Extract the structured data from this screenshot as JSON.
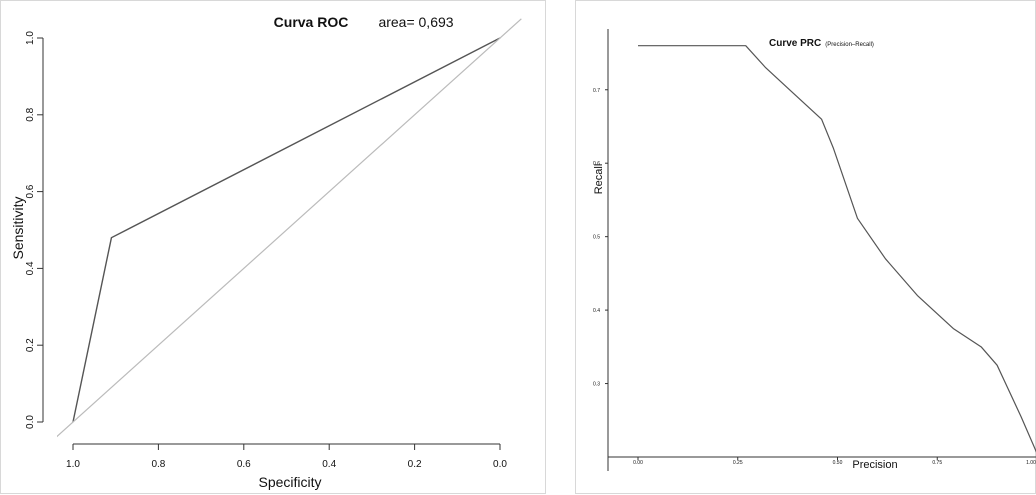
{
  "chart_data": [
    {
      "type": "line",
      "title": "Curva ROC",
      "annotation": "area= 0,693",
      "xlabel": "Specificity",
      "ylabel": "Sensitivity",
      "x_reversed": true,
      "xlim": [
        1.0,
        0.0
      ],
      "ylim": [
        0.0,
        1.0
      ],
      "xticks": [
        "1.0",
        "0.8",
        "0.6",
        "0.4",
        "0.2",
        "0.0"
      ],
      "yticks": [
        "0.0",
        "0.2",
        "0.4",
        "0.6",
        "0.8",
        "1.0"
      ],
      "grid": false,
      "series": [
        {
          "style": "roc-curve",
          "color": "#555555",
          "x": [
            1.0,
            0.91,
            0.0
          ],
          "y": [
            0.0,
            0.48,
            1.0
          ]
        },
        {
          "style": "diagonal-reference",
          "color": "#bbbbbb",
          "x": [
            1.05,
            -0.05
          ],
          "y": [
            -0.05,
            1.05
          ]
        }
      ]
    },
    {
      "type": "line",
      "title": "Curve PRC",
      "subtitle": "(Precision–Recall)",
      "xlabel": "Precision",
      "ylabel": "Recall",
      "xlim": [
        0.0,
        1.0
      ],
      "ylim": [
        0.2,
        0.78
      ],
      "xticks": [
        "0.00",
        "0.25",
        "0.50",
        "0.75",
        "1.00"
      ],
      "yticks": [
        "0.3",
        "0.4",
        "0.5",
        "0.6",
        "0.7"
      ],
      "grid": false,
      "series": [
        {
          "style": "prc-curve",
          "color": "#555555",
          "x": [
            0.0,
            0.27,
            0.32,
            0.38,
            0.46,
            0.49,
            0.55,
            0.62,
            0.7,
            0.79,
            0.86,
            0.9,
            0.96,
            1.0
          ],
          "y": [
            0.76,
            0.76,
            0.73,
            0.7,
            0.66,
            0.62,
            0.525,
            0.47,
            0.42,
            0.375,
            0.35,
            0.325,
            0.255,
            0.205
          ]
        }
      ]
    }
  ]
}
